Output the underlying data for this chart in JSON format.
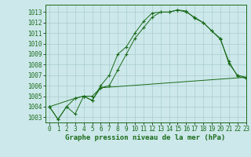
{
  "title": "Graphe pression niveau de la mer (hPa)",
  "bg_color": "#cce8ea",
  "grid_color": "#aacccc",
  "line_color": "#1a6b1a",
  "marker_color": "#1a6b1a",
  "xlim": [
    -0.5,
    23
  ],
  "ylim": [
    1002.5,
    1013.7
  ],
  "yticks": [
    1003,
    1004,
    1005,
    1006,
    1007,
    1008,
    1009,
    1010,
    1011,
    1012,
    1013
  ],
  "xticks": [
    0,
    1,
    2,
    3,
    4,
    5,
    6,
    7,
    8,
    9,
    10,
    11,
    12,
    13,
    14,
    15,
    16,
    17,
    18,
    19,
    20,
    21,
    22,
    23
  ],
  "series1_x": [
    0,
    1,
    2,
    3,
    4,
    5,
    6,
    7,
    8,
    9,
    10,
    11,
    12,
    13,
    14,
    15,
    16,
    17,
    18,
    19,
    20,
    21,
    22,
    23
  ],
  "series1_y": [
    1004.0,
    1002.8,
    1004.0,
    1003.3,
    1005.0,
    1004.6,
    1006.0,
    1007.0,
    1009.0,
    1009.7,
    1011.0,
    1012.1,
    1012.9,
    1013.0,
    1013.0,
    1013.2,
    1013.1,
    1012.4,
    1012.0,
    1011.2,
    1010.5,
    1008.1,
    1007.0,
    1006.8
  ],
  "series2_x": [
    0,
    1,
    2,
    3,
    4,
    5,
    6,
    7,
    8,
    9,
    10,
    11,
    12,
    13,
    14,
    15,
    16,
    17,
    18,
    19,
    20,
    21,
    22,
    23
  ],
  "series2_y": [
    1004.0,
    1002.8,
    1004.0,
    1004.8,
    1005.0,
    1005.0,
    1005.8,
    1006.0,
    1007.5,
    1009.0,
    1010.5,
    1011.5,
    1012.5,
    1013.0,
    1013.0,
    1013.2,
    1013.0,
    1012.5,
    1012.0,
    1011.2,
    1010.4,
    1008.3,
    1006.9,
    1006.7
  ],
  "series3_x": [
    0,
    3,
    4,
    5,
    6,
    23
  ],
  "series3_y": [
    1004.0,
    1004.8,
    1005.0,
    1004.6,
    1005.8,
    1006.8
  ],
  "label_fontsize": 6.5,
  "tick_fontsize": 5.5
}
